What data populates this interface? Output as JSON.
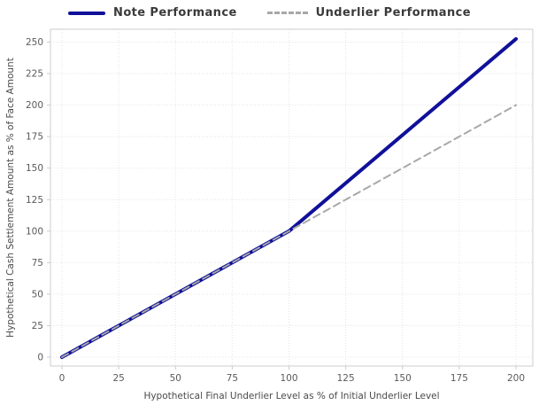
{
  "chart_data": {
    "type": "line",
    "title": "",
    "xlabel": "Hypothetical Final Underlier Level as % of Initial Underlier Level",
    "ylabel": "Hypothetical Cash Settlement Amount as % of Face Amount",
    "x_ticks": [
      0,
      25,
      50,
      75,
      100,
      125,
      150,
      175,
      200
    ],
    "y_ticks": [
      0,
      25,
      50,
      75,
      100,
      125,
      150,
      175,
      200,
      225,
      250
    ],
    "xlim": [
      0,
      200
    ],
    "ylim": [
      0,
      250
    ],
    "grid": true,
    "grid_style": "dotted",
    "legend_position": "top-center",
    "series": [
      {
        "name": "Note Performance",
        "style": "solid",
        "color": "#10109a",
        "width": 4,
        "points": [
          [
            0,
            0
          ],
          [
            100,
            100
          ],
          [
            200,
            252.5
          ]
        ]
      },
      {
        "name": "Underlier Performance",
        "style": "dashed",
        "color": "#a8a8a8",
        "width": 2,
        "points": [
          [
            0,
            0
          ],
          [
            200,
            200
          ]
        ]
      }
    ],
    "colors": {
      "background": "#ffffff",
      "grid": "#e4e4e4",
      "spine": "#cccccc",
      "tick_label": "#5a5a5a",
      "axis_label": "#4a4a4a",
      "legend_text": "#3a3a3a"
    }
  }
}
